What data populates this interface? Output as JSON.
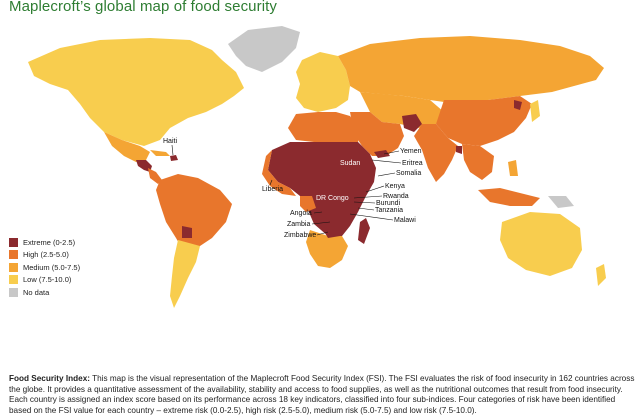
{
  "title": "Maplecroft’s global map of food security",
  "colors": {
    "extreme": "#8b2a2e",
    "high": "#e8762c",
    "medium": "#f4a534",
    "low": "#f8cd4e",
    "nodata": "#c8c8c8",
    "title": "#2e7d32"
  },
  "legend": [
    {
      "label": "Extreme (0-2.5)",
      "color": "#8b2a2e"
    },
    {
      "label": "High (2.5-5.0)",
      "color": "#e8762c"
    },
    {
      "label": "Medium (5.0-7.5)",
      "color": "#f4a534"
    },
    {
      "label": "Low (7.5-10.0)",
      "color": "#f8cd4e"
    },
    {
      "label": "No data",
      "color": "#c8c8c8"
    }
  ],
  "country_labels": {
    "haiti": "Haiti",
    "sudan": "Sudan",
    "yemen": "Yemen",
    "eritrea": "Eritrea",
    "somalia": "Somalia",
    "liberia": "Liberia",
    "dr_congo": "DR Congo",
    "kenya": "Kenya",
    "rwanda": "Rwanda",
    "burundi": "Burundi",
    "tanzania": "Tanzania",
    "angola": "Angola",
    "zambia": "Zambia",
    "zimbabwe": "Zimbabwe",
    "malawi": "Malawi"
  },
  "description": {
    "heading": "Food Security Index:",
    "body": " This map is the visual representation of the Maplecroft Food Security Index (FSI). The FSI evaluates the risk of food insecurity in 162 countries across the globe. It provides a quantitative assessment of the availability, stability and access to food supplies, as well as the nutritional outcomes that result from food insecurity. Each country is assigned an index score based on its performance across 18 key indicators, classified into four sub-indices. Four categories of risk have been identified based on the FSI value for each country – extreme risk (0.0-2.5), high risk (2.5-5.0), medium risk (5.0-7.5) and low risk (7.5-10.0)."
  }
}
